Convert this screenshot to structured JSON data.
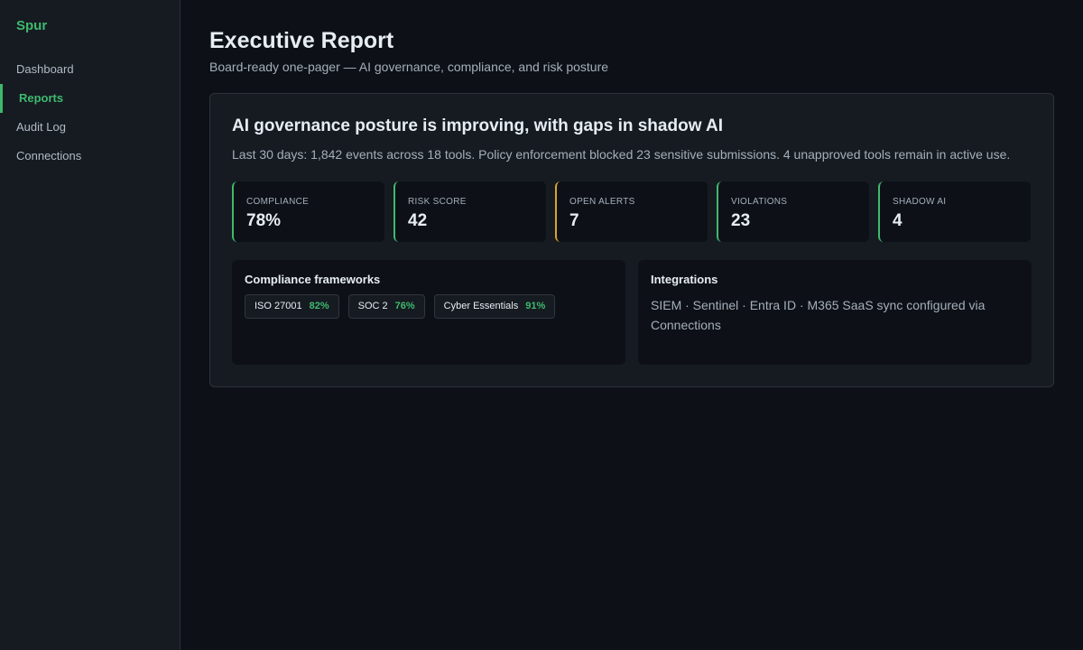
{
  "sidebar": {
    "brand": "Spur",
    "items": [
      {
        "label": "Dashboard"
      },
      {
        "label": "Reports"
      },
      {
        "label": "Audit Log"
      },
      {
        "label": "Connections"
      }
    ]
  },
  "header": {
    "title": "Executive Report",
    "subtitle": "Board-ready one-pager — AI governance, compliance, and risk posture"
  },
  "report": {
    "headline": "AI governance posture is improving, with gaps in shadow AI",
    "summary": "Last 30 days: 1,842 events across 18 tools. Policy enforcement blocked 23 sensitive submissions. 4 unapproved tools remain in active use.",
    "kpis": [
      {
        "label": "Compliance",
        "value": "78%"
      },
      {
        "label": "Risk score",
        "value": "42"
      },
      {
        "label": "Open alerts",
        "value": "7"
      },
      {
        "label": "Violations",
        "value": "23"
      },
      {
        "label": "Shadow AI",
        "value": "4"
      }
    ],
    "frameworks": {
      "title": "Compliance frameworks",
      "items": [
        {
          "name": "ISO 27001",
          "pct": "82%"
        },
        {
          "name": "SOC 2",
          "pct": "76%"
        },
        {
          "name": "Cyber Essentials",
          "pct": "91%"
        }
      ]
    },
    "integrations": {
      "title": "Integrations",
      "text": "SIEM · Sentinel · Entra ID · M365 SaaS sync configured via Connections"
    }
  },
  "colors": {
    "accent": "#3fb96d",
    "warning": "#d4a72c",
    "background": "#0d1117",
    "surface": "#161b22"
  }
}
